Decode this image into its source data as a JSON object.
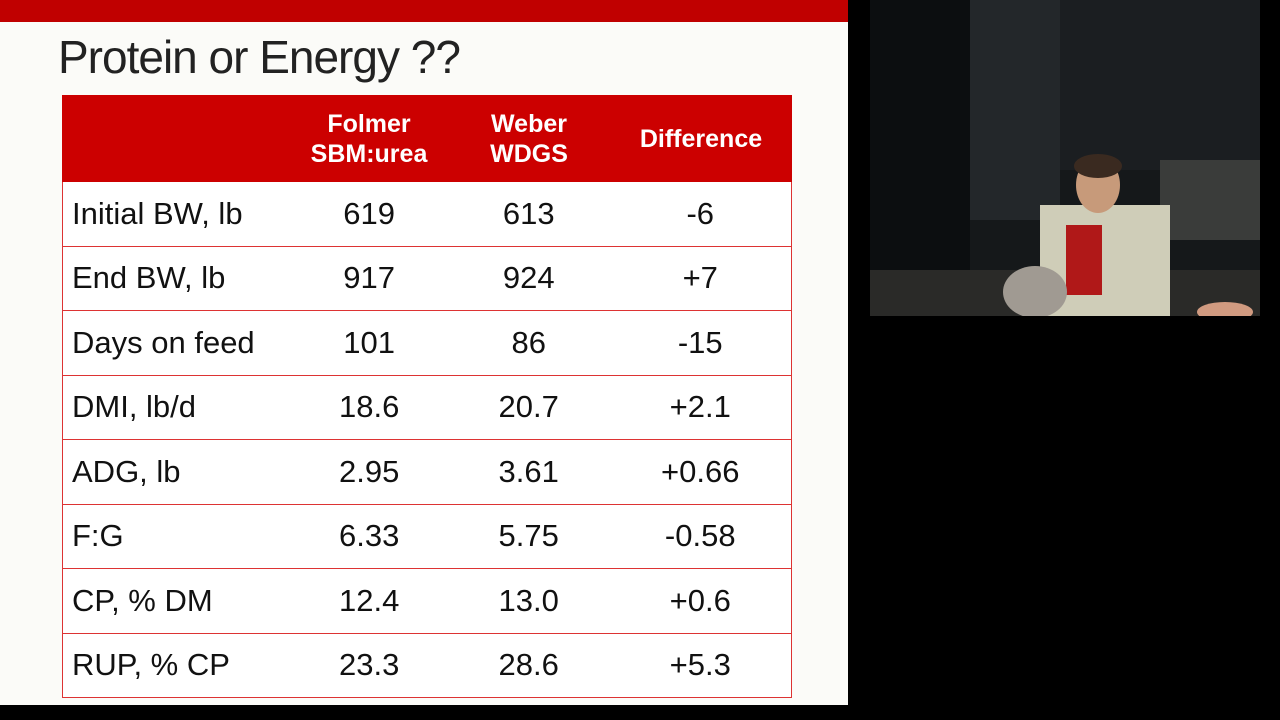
{
  "slide": {
    "title": "Protein or Energy ??",
    "table": {
      "columns": [
        [
          "Folmer",
          "SBM:urea"
        ],
        [
          "Weber",
          "WDGS"
        ],
        [
          "Difference"
        ]
      ],
      "rows": [
        [
          "Initial BW, lb",
          "619",
          "613",
          "-6"
        ],
        [
          "End BW, lb",
          "917",
          "924",
          "+7"
        ],
        [
          "Days on feed",
          "101",
          "86",
          "-15"
        ],
        [
          "DMI, lb/d",
          "18.6",
          "20.7",
          "+2.1"
        ],
        [
          "ADG, lb",
          "2.95",
          "3.61",
          "+0.66"
        ],
        [
          "F:G",
          "6.33",
          "5.75",
          "-0.58"
        ],
        [
          "CP, % DM",
          "12.4",
          "13.0",
          "+0.6"
        ],
        [
          "RUP, % CP",
          "23.3",
          "28.6",
          "+5.3"
        ]
      ]
    }
  }
}
